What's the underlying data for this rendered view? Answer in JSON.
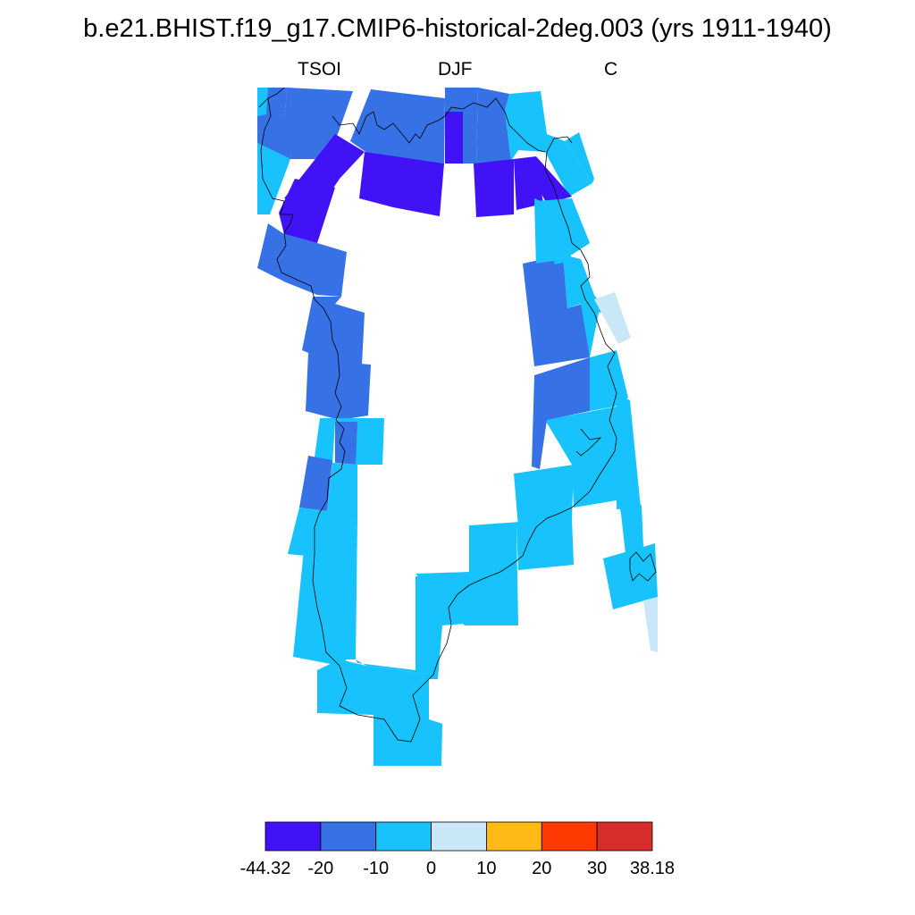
{
  "title": "b.e21.BHIST.f19_g17.CMIP6-historical-2deg.003 (yrs 1911-1940)",
  "variable": "TSOI",
  "season": "DJF",
  "units": "C",
  "colorbar": {
    "colors": [
      "#4212f7",
      "#3671e6",
      "#17c2fd",
      "#c9e7f7",
      "#fdb914",
      "#ff3a03",
      "#d72d2d"
    ],
    "labels": [
      "-44.32",
      "-20",
      "-10",
      "0",
      "10",
      "20",
      "30",
      "38.18"
    ]
  },
  "map_colors": {
    "deep": "#4212f7",
    "mid": "#3671e6",
    "cyan": "#17c2fd",
    "pale": "#c9e7f7"
  }
}
